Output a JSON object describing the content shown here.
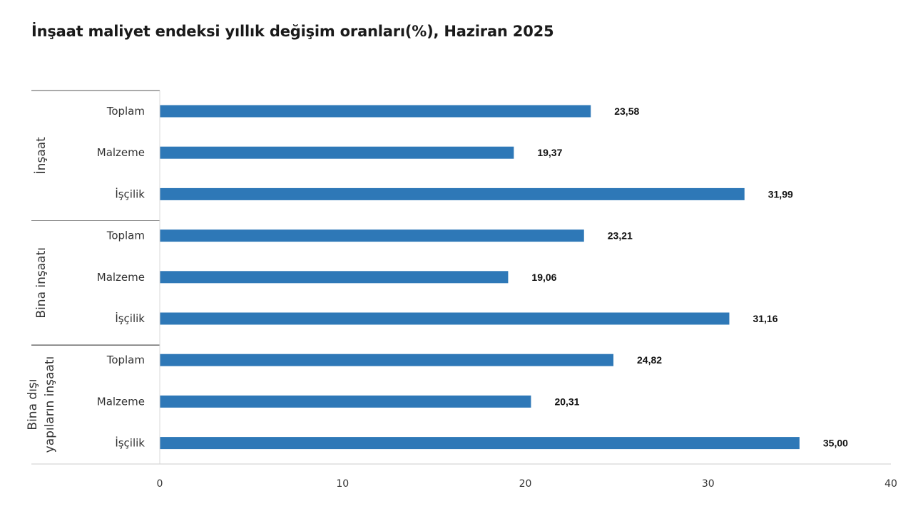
{
  "chart_data": {
    "type": "bar",
    "orientation": "horizontal",
    "title": "İnşaat maliyet endeksi yıllık değişim oranları(%), Haziran 2025",
    "xlim": [
      0,
      40
    ],
    "x_ticks": [
      "0",
      "10",
      "20",
      "30",
      "40"
    ],
    "grid": false,
    "bar_color": "#2e78b7",
    "groups": [
      {
        "name": "İnşaat",
        "categories": [
          "Toplam",
          "Malzeme",
          "İşçilik"
        ],
        "values": [
          23.58,
          19.37,
          31.99
        ],
        "value_labels": [
          "23,58",
          "19,37",
          "31,99"
        ]
      },
      {
        "name": "Bina inşaatı",
        "categories": [
          "Toplam",
          "Malzeme",
          "İşçilik"
        ],
        "values": [
          23.21,
          19.06,
          31.16
        ],
        "value_labels": [
          "23,21",
          "19,06",
          "31,16"
        ]
      },
      {
        "name": "Bina dışı yapıların inşaatı",
        "name_lines": [
          "Bina dışı",
          "yapıların inşaatı"
        ],
        "categories": [
          "Toplam",
          "Malzeme",
          "İşçilik"
        ],
        "values": [
          24.82,
          20.31,
          35.0
        ],
        "value_labels": [
          "24,82",
          "20,31",
          "35,00"
        ]
      }
    ]
  }
}
